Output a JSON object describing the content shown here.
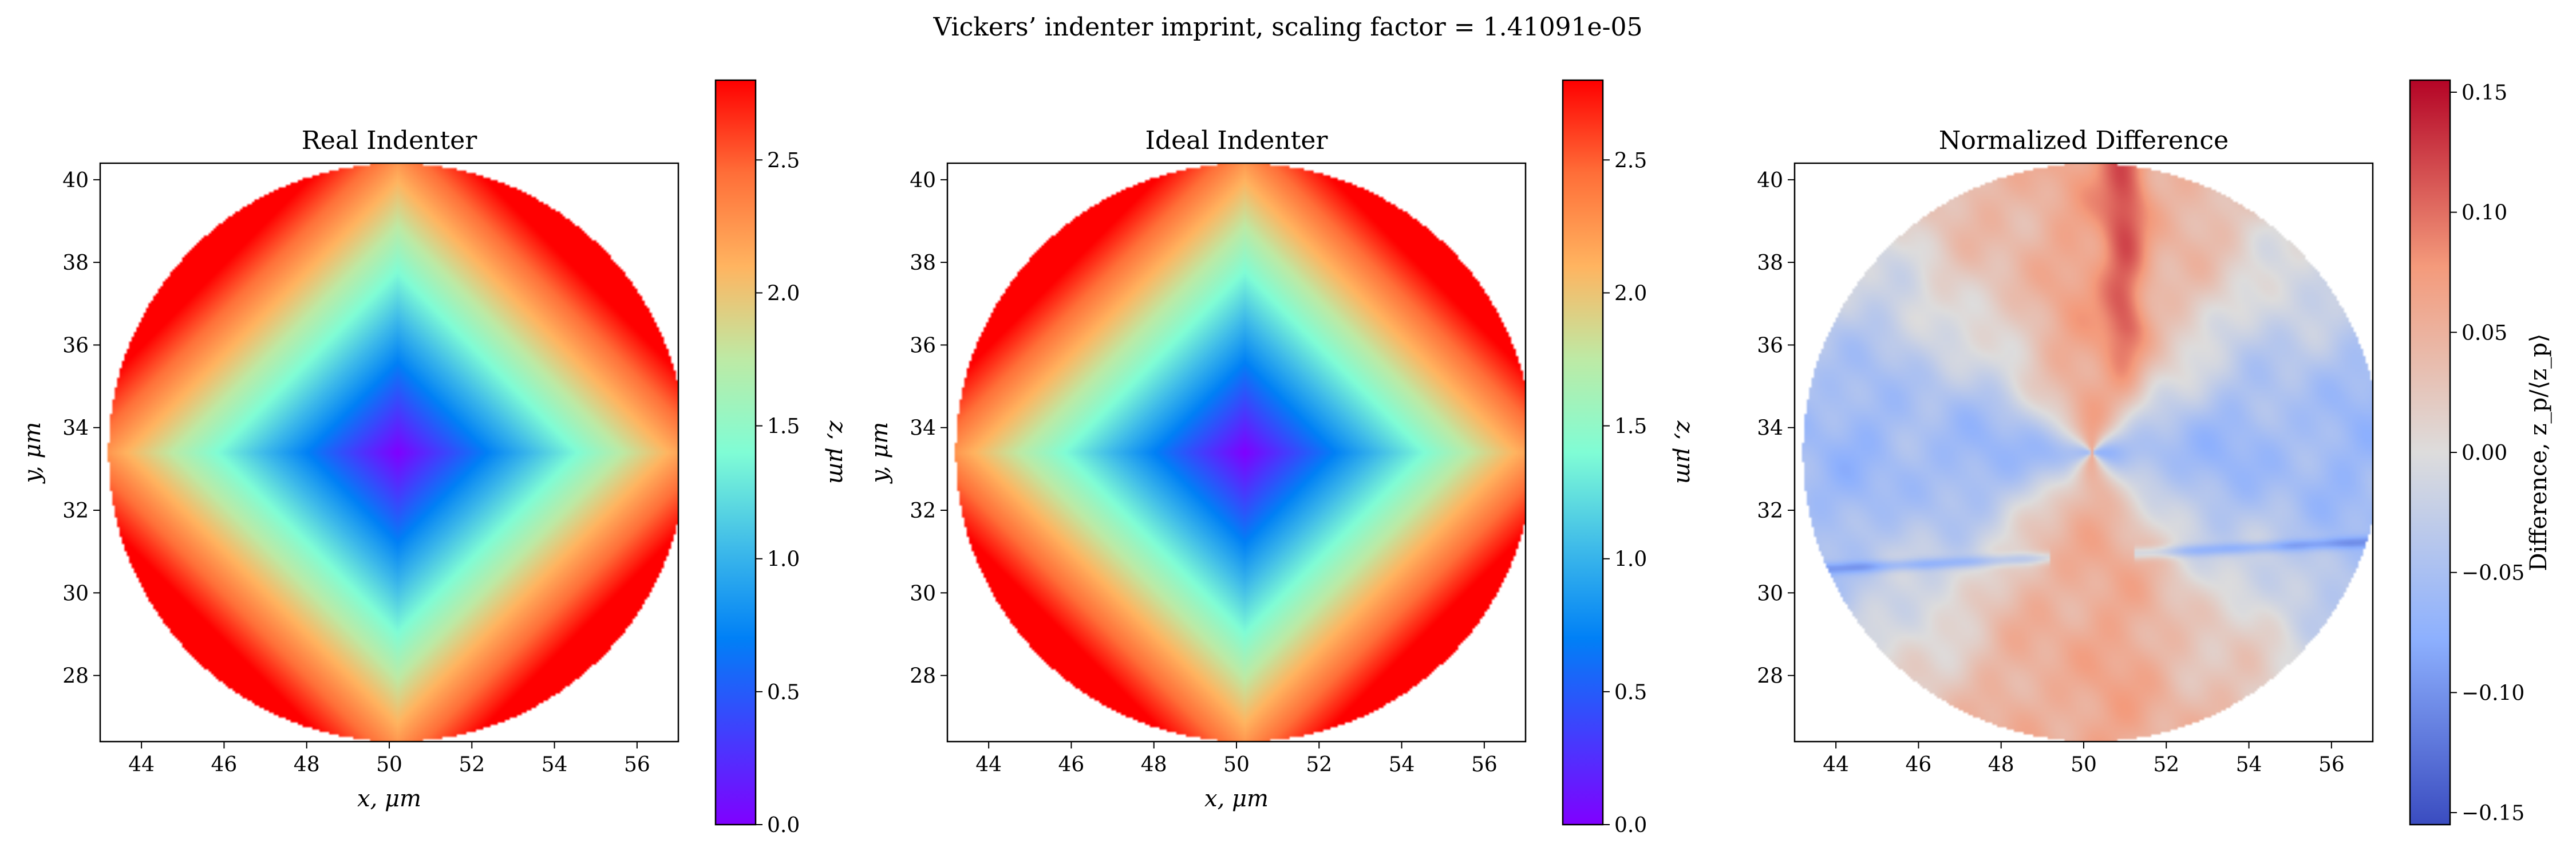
{
  "figure": {
    "suptitle": "Vickers’ indenter imprint, scaling factor = 1.41091e-05"
  },
  "chart_data": [
    {
      "type": "heatmap",
      "title": "Real Indenter",
      "xlabel": "x, μm",
      "ylabel": "y, μm",
      "xlim": [
        43,
        57
      ],
      "ylim": [
        26.4,
        40.4
      ],
      "xticks": [
        "44",
        "46",
        "48",
        "50",
        "52",
        "54",
        "56"
      ],
      "yticks": [
        "28",
        "30",
        "32",
        "34",
        "36",
        "38",
        "40"
      ],
      "grid": false,
      "field": {
        "shape": "pyramid-imprint",
        "center": [
          50.2,
          33.4
        ],
        "radius": 7.0,
        "z_min": 0.0,
        "z_max": 2.8
      },
      "colormap": "rainbow",
      "colorbar": {
        "label": "z, μm",
        "range": [
          0.0,
          2.8
        ],
        "ticks": [
          "0.0",
          "0.5",
          "1.0",
          "1.5",
          "2.0",
          "2.5"
        ]
      }
    },
    {
      "type": "heatmap",
      "title": "Ideal Indenter",
      "xlabel": "x, μm",
      "ylabel": "y, μm",
      "xlim": [
        43,
        57
      ],
      "ylim": [
        26.4,
        40.4
      ],
      "xticks": [
        "44",
        "46",
        "48",
        "50",
        "52",
        "54",
        "56"
      ],
      "yticks": [
        "28",
        "30",
        "32",
        "34",
        "36",
        "38",
        "40"
      ],
      "grid": false,
      "field": {
        "shape": "pyramid-imprint",
        "center": [
          50.2,
          33.4
        ],
        "radius": 7.0,
        "z_min": 0.0,
        "z_max": 2.8
      },
      "colormap": "rainbow",
      "colorbar": {
        "label": "z, μm",
        "range": [
          0.0,
          2.8
        ],
        "ticks": [
          "0.0",
          "0.5",
          "1.0",
          "1.5",
          "2.0",
          "2.5"
        ]
      }
    },
    {
      "type": "heatmap",
      "title": "Normalized Difference",
      "xlabel": "",
      "ylabel": "",
      "xlim": [
        43,
        57
      ],
      "ylim": [
        26.4,
        40.4
      ],
      "xticks": [
        "44",
        "46",
        "48",
        "50",
        "52",
        "54",
        "56"
      ],
      "yticks": [
        "28",
        "30",
        "32",
        "34",
        "36",
        "38",
        "40"
      ],
      "grid": false,
      "field": {
        "shape": "difference-map",
        "center": [
          50.2,
          33.4
        ],
        "radius": 7.0,
        "range": [
          -0.155,
          0.155
        ]
      },
      "colormap": "coolwarm",
      "colorbar": {
        "label": "Difference, z_p/⟨z_p⟩",
        "range": [
          -0.155,
          0.155
        ],
        "ticks": [
          "−0.15",
          "−0.10",
          "−0.05",
          "0.00",
          "0.05",
          "0.10",
          "0.15"
        ]
      }
    }
  ]
}
